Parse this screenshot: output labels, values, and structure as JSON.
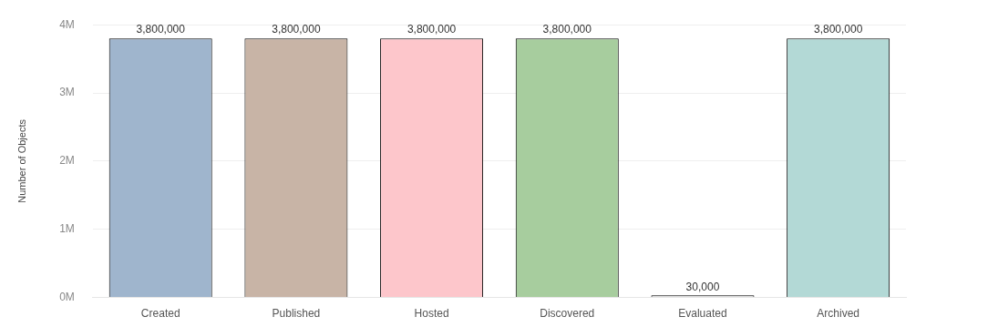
{
  "chart_data": {
    "type": "bar",
    "y_label": "Number of Objects",
    "categories": [
      "Created",
      "Published",
      "Hosted",
      "Discovered",
      "Evaluated",
      "Archived"
    ],
    "values": [
      3800000,
      3800000,
      3800000,
      3800000,
      30000,
      3800000
    ],
    "value_labels": [
      "3,800,000",
      "3,800,000",
      "3,800,000",
      "3,800,000",
      "30,000",
      "3,800,000"
    ],
    "colors": [
      "#9fb5cd",
      "#c8b4a6",
      "#fdc6cb",
      "#a7cd9e",
      "#e4e4e4",
      "#b3d9d6"
    ],
    "ylim": [
      0,
      4000000
    ],
    "yticks": [
      {
        "value": 0,
        "label": "0M"
      },
      {
        "value": 1000000,
        "label": "1M"
      },
      {
        "value": 2000000,
        "label": "2M"
      },
      {
        "value": 3000000,
        "label": "3M"
      },
      {
        "value": 4000000,
        "label": "4M"
      }
    ],
    "grid": true,
    "data_labels": true
  }
}
